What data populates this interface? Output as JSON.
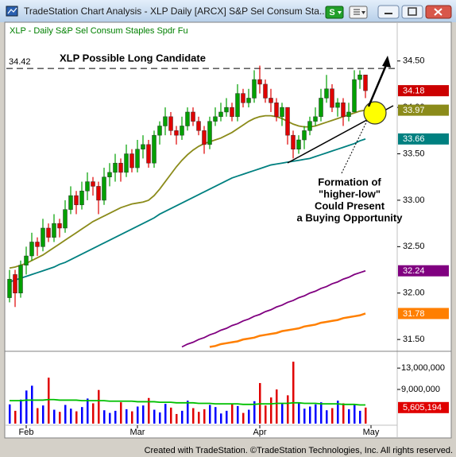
{
  "window": {
    "title": "TradeStation Chart Analysis - XLP Daily [ARCX] S&P Sel Consum Sta...",
    "button": "S",
    "footer": "Created with TradeStation. ©TradeStation Technologies, Inc. All rights reserved."
  },
  "chart_data": {
    "type": "candlestick",
    "subtitle": "XLP - Daily  S&P Sel Consum Staples Spdr Fu",
    "annotations": [
      "XLP Possible Long Candidate",
      "Formation of",
      "\"higher-low\"",
      "Could Present",
      "a Buying Opportunity"
    ],
    "resistance": 34.42,
    "categories": [
      null,
      null,
      null,
      "Feb",
      null,
      null,
      null,
      null,
      null,
      null,
      null,
      null,
      null,
      null,
      null,
      null,
      null,
      null,
      null,
      null,
      null,
      null,
      null,
      "Mar",
      null,
      null,
      null,
      null,
      null,
      null,
      null,
      null,
      null,
      null,
      null,
      null,
      null,
      null,
      null,
      null,
      null,
      null,
      null,
      null,
      null,
      "Apr",
      null,
      null,
      null,
      null,
      null,
      null,
      null,
      null,
      null,
      null,
      null,
      null,
      null,
      null,
      null,
      null,
      null,
      null,
      null,
      "May",
      null,
      null,
      null,
      null
    ],
    "open": [
      31.95,
      32.2,
      32.0,
      32.3,
      32.4,
      32.55,
      32.5,
      32.7,
      32.6,
      32.75,
      32.7,
      32.9,
      33.05,
      32.95,
      33.1,
      33.2,
      33.15,
      33.0,
      33.25,
      33.3,
      33.4,
      33.3,
      33.5,
      33.35,
      33.55,
      33.6,
      33.4,
      33.7,
      33.8,
      33.9,
      33.75,
      33.7,
      33.8,
      33.95,
      33.85,
      33.75,
      33.6,
      33.85,
      33.9,
      33.95,
      34.0,
      33.9,
      34.15,
      34.05,
      34.1,
      34.3,
      34.25,
      34.1,
      34.05,
      33.9,
      34.0,
      33.7,
      33.55,
      33.65,
      33.75,
      33.85,
      33.9,
      34.1,
      34.2,
      34.0,
      34.05,
      33.9,
      33.95,
      34.3,
      34.35,
      null,
      null,
      null,
      null,
      null
    ],
    "high": [
      32.25,
      32.25,
      32.35,
      32.5,
      32.65,
      32.6,
      32.8,
      32.75,
      32.85,
      32.8,
      33.0,
      33.15,
      33.1,
      33.2,
      33.3,
      33.25,
      33.2,
      33.35,
      33.4,
      33.5,
      33.45,
      33.6,
      33.55,
      33.65,
      33.7,
      33.65,
      33.75,
      33.85,
      34.0,
      33.95,
      33.8,
      33.9,
      34.0,
      34.0,
      33.9,
      33.8,
      33.9,
      34.0,
      34.05,
      34.1,
      34.05,
      34.25,
      34.2,
      34.2,
      34.4,
      34.45,
      34.3,
      34.2,
      34.1,
      34.05,
      34.0,
      33.75,
      33.7,
      33.8,
      33.9,
      34.0,
      34.2,
      34.35,
      34.25,
      34.1,
      34.1,
      34.05,
      34.4,
      34.4,
      34.35,
      null,
      null,
      null,
      null,
      null
    ],
    "low": [
      31.9,
      31.85,
      31.95,
      32.2,
      32.35,
      32.4,
      32.45,
      32.55,
      32.55,
      32.6,
      32.65,
      32.85,
      32.85,
      32.9,
      33.0,
      33.05,
      32.85,
      32.95,
      33.15,
      33.2,
      33.2,
      33.25,
      33.3,
      33.3,
      33.45,
      33.35,
      33.35,
      33.6,
      33.7,
      33.7,
      33.6,
      33.65,
      33.75,
      33.8,
      33.7,
      33.5,
      33.55,
      33.8,
      33.85,
      33.9,
      33.85,
      33.85,
      34.0,
      34.0,
      34.05,
      34.15,
      34.05,
      33.95,
      33.85,
      33.8,
      33.6,
      33.45,
      33.5,
      33.55,
      33.7,
      33.8,
      33.85,
      34.05,
      33.95,
      33.9,
      33.8,
      33.85,
      33.95,
      34.2,
      34.1,
      null,
      null,
      null,
      null,
      null
    ],
    "close": [
      32.15,
      32.0,
      32.3,
      32.4,
      32.55,
      32.5,
      32.7,
      32.6,
      32.75,
      32.7,
      32.9,
      33.05,
      32.95,
      33.1,
      33.2,
      33.15,
      33.0,
      33.25,
      33.3,
      33.4,
      33.3,
      33.5,
      33.35,
      33.55,
      33.6,
      33.4,
      33.7,
      33.8,
      33.9,
      33.75,
      33.7,
      33.8,
      33.95,
      33.85,
      33.75,
      33.6,
      33.85,
      33.9,
      33.95,
      34.0,
      33.9,
      34.15,
      34.05,
      34.1,
      34.3,
      34.25,
      34.1,
      34.05,
      33.9,
      34.0,
      33.7,
      33.55,
      33.65,
      33.75,
      33.85,
      33.9,
      34.1,
      34.2,
      34.0,
      34.05,
      33.9,
      33.95,
      34.3,
      34.35,
      34.18,
      null,
      null,
      null,
      null,
      null
    ],
    "up_color": "#00a000",
    "down_color": "#e00000",
    "close_label_color": "#cc0000",
    "series": [
      {
        "color": "#8b8b1a",
        "values": [
          32.27,
          32.28,
          32.3,
          32.32,
          32.35,
          32.38,
          32.41,
          32.45,
          32.49,
          32.53,
          32.57,
          32.61,
          32.65,
          32.69,
          32.73,
          32.77,
          32.8,
          32.83,
          32.86,
          32.89,
          32.92,
          32.94,
          32.96,
          32.97,
          32.98,
          33.0,
          33.05,
          33.12,
          33.2,
          33.28,
          33.36,
          33.43,
          33.49,
          33.54,
          33.58,
          33.61,
          33.63,
          33.65,
          33.67,
          33.7,
          33.73,
          33.77,
          33.81,
          33.85,
          33.88,
          33.9,
          33.91,
          33.91,
          33.9,
          33.88,
          33.85,
          33.82,
          33.8,
          33.79,
          33.79,
          33.8,
          33.82,
          33.84,
          33.86,
          33.88,
          33.9,
          33.92,
          33.94,
          33.96,
          33.97,
          null,
          null,
          null,
          null,
          null
        ]
      },
      {
        "color": "#008080",
        "values": [
          32.12,
          32.14,
          32.16,
          32.18,
          32.2,
          32.22,
          32.24,
          32.26,
          32.28,
          32.31,
          32.33,
          32.36,
          32.39,
          32.42,
          32.45,
          32.48,
          32.51,
          32.54,
          32.57,
          32.6,
          32.63,
          32.66,
          32.69,
          32.72,
          32.75,
          32.78,
          32.81,
          32.85,
          32.88,
          32.91,
          32.94,
          32.97,
          33.0,
          33.03,
          33.06,
          33.09,
          33.12,
          33.15,
          33.18,
          33.21,
          33.24,
          33.26,
          33.28,
          33.3,
          33.32,
          33.34,
          33.36,
          33.38,
          33.39,
          33.4,
          33.41,
          33.42,
          33.43,
          33.44,
          33.45,
          33.47,
          33.49,
          33.51,
          33.53,
          33.55,
          33.57,
          33.59,
          33.61,
          33.64,
          33.66,
          null,
          null,
          null,
          null,
          null
        ]
      },
      {
        "color": "#800080",
        "values": [
          null,
          null,
          null,
          null,
          null,
          null,
          null,
          null,
          null,
          null,
          null,
          null,
          null,
          null,
          null,
          null,
          null,
          null,
          null,
          null,
          null,
          null,
          null,
          null,
          null,
          null,
          null,
          null,
          null,
          null,
          null,
          31.42,
          31.45,
          31.47,
          31.5,
          31.52,
          31.55,
          31.57,
          31.6,
          31.62,
          31.65,
          31.67,
          31.7,
          31.72,
          31.75,
          31.77,
          31.8,
          31.82,
          31.85,
          31.87,
          31.9,
          31.92,
          31.95,
          31.97,
          32.0,
          32.02,
          32.05,
          32.07,
          32.1,
          32.12,
          32.15,
          32.17,
          32.2,
          32.22,
          32.24,
          null,
          null,
          null,
          null,
          null
        ]
      },
      {
        "color": "#ff7f00",
        "values": [
          null,
          null,
          null,
          null,
          null,
          null,
          null,
          null,
          null,
          null,
          null,
          null,
          null,
          null,
          null,
          null,
          null,
          null,
          null,
          null,
          null,
          null,
          null,
          null,
          null,
          null,
          null,
          null,
          null,
          null,
          null,
          null,
          null,
          null,
          null,
          null,
          31.42,
          31.43,
          31.45,
          31.46,
          31.47,
          31.48,
          31.5,
          31.51,
          31.52,
          31.54,
          31.55,
          31.56,
          31.57,
          31.59,
          31.6,
          31.61,
          31.62,
          31.64,
          31.65,
          31.66,
          31.68,
          31.69,
          31.7,
          31.71,
          31.73,
          31.74,
          31.75,
          31.76,
          31.78,
          null,
          null,
          null,
          null,
          null
        ]
      }
    ],
    "ylim": [
      31.39,
      34.9
    ],
    "yticks": [
      {
        "value": 34.5,
        "label": "34.50"
      },
      {
        "value": 34.0,
        "label": "34.00"
      },
      {
        "value": 33.5,
        "label": "33.50"
      },
      {
        "value": 33.0,
        "label": "33.00"
      },
      {
        "value": 32.5,
        "label": "32.50"
      },
      {
        "value": 32.0,
        "label": "32.00"
      },
      {
        "value": 31.5,
        "label": "31.50"
      }
    ],
    "volume": {
      "up_color": "#0000ff",
      "down_color": "#e00000",
      "label_color": "#e00000",
      "values": [
        6200000,
        5000000,
        7100000,
        8800000,
        9700000,
        5500000,
        6000000,
        11200000,
        5200000,
        4800000,
        6100000,
        5400000,
        4900000,
        5700000,
        7300000,
        6400000,
        8900000,
        5100000,
        4600000,
        5000000,
        6600000,
        5300000,
        4900000,
        5800000,
        6000000,
        7400000,
        5200000,
        4700000,
        6300000,
        5600000,
        4400000,
        5000000,
        6900000,
        5500000,
        4800000,
        5300000,
        6100000,
        5700000,
        4500000,
        5000000,
        6400000,
        5900000,
        4600000,
        5200000,
        6800000,
        10200000,
        6000000,
        7500000,
        9000000,
        6300000,
        7900000,
        14200000,
        6500000,
        5400000,
        5800000,
        6200000,
        6600000,
        5100000,
        5500000,
        6900000,
        6400000,
        5300000,
        6100000,
        5000000,
        5605194,
        null,
        null,
        null,
        null,
        null
      ],
      "value_labels": [
        null,
        null,
        null,
        null,
        null,
        null,
        null,
        null,
        null,
        null,
        null,
        null,
        null,
        null,
        null,
        null,
        null,
        null,
        null,
        null,
        null,
        null,
        null,
        null,
        null,
        null,
        null,
        null,
        null,
        null,
        null,
        null,
        null,
        null,
        null,
        null,
        null,
        null,
        null,
        null,
        null,
        null,
        null,
        null,
        null,
        null,
        null,
        null,
        null,
        null,
        null,
        null,
        null,
        null,
        null,
        null,
        null,
        null,
        null,
        null,
        null,
        null,
        null,
        null,
        "5,605,194",
        null,
        null,
        null,
        null,
        null
      ],
      "average": {
        "color": "#00c000",
        "values": [
          6900000,
          6900000,
          6900000,
          7000000,
          7000000,
          7000000,
          7000000,
          7100000,
          7100000,
          7000000,
          7000000,
          7000000,
          7000000,
          6900000,
          6900000,
          6900000,
          6900000,
          6900000,
          6800000,
          6800000,
          6800000,
          6800000,
          6800000,
          6700000,
          6700000,
          6700000,
          6700000,
          6600000,
          6600000,
          6600000,
          6500000,
          6500000,
          6500000,
          6500000,
          6400000,
          6400000,
          6400000,
          6300000,
          6300000,
          6300000,
          6300000,
          6300000,
          6200000,
          6200000,
          6200000,
          6300000,
          6300000,
          6300000,
          6400000,
          6400000,
          6400000,
          6500000,
          6500000,
          6400000,
          6400000,
          6400000,
          6300000,
          6300000,
          6300000,
          6300000,
          6200000,
          6200000,
          6200000,
          6100000,
          6100000,
          null,
          null,
          null,
          null,
          null
        ]
      },
      "ylim": [
        2600000,
        15700000
      ],
      "yticks": [
        {
          "value": 13000000,
          "label": "13,000,000"
        },
        {
          "value": 9000000,
          "label": "9,000,000"
        }
      ]
    }
  }
}
